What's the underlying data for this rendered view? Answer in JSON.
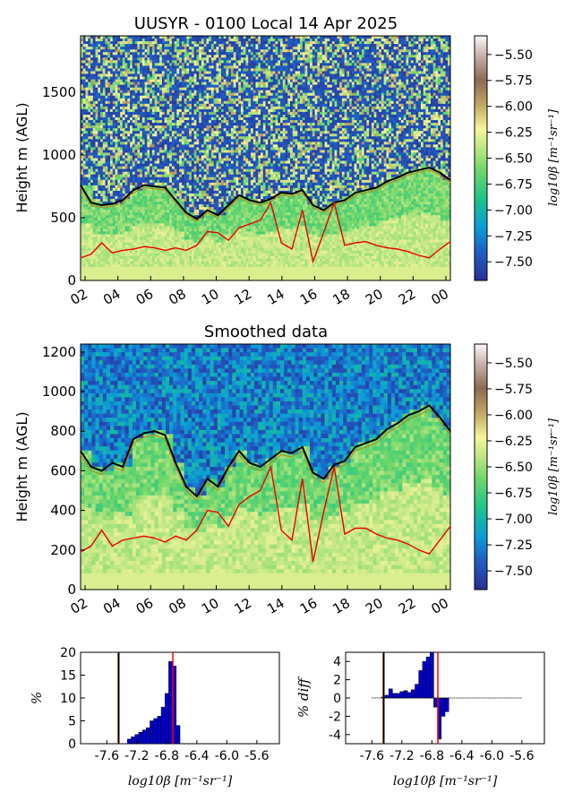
{
  "chart_data": [
    {
      "type": "heatmap",
      "title": "UUSYR - 0100 Local 14 Apr 2025",
      "ylabel": "Height m (AGL)",
      "xticks": [
        "02",
        "04",
        "06",
        "08",
        "10",
        "12",
        "14",
        "16",
        "18",
        "20",
        "22",
        "00"
      ],
      "ylim": [
        0,
        1950
      ],
      "yticks": [
        0,
        500,
        1000,
        1500
      ],
      "colorbar_label": "log10β [m⁻¹sr⁻¹]",
      "colorbar_ticks": [
        "-5.50",
        "-5.75",
        "-6.00",
        "-6.25",
        "-6.50",
        "-6.75",
        "-7.00",
        "-7.25",
        "-7.50"
      ],
      "black_line_height": [
        760,
        620,
        600,
        610,
        640,
        720,
        760,
        750,
        740,
        640,
        540,
        490,
        560,
        520,
        600,
        680,
        640,
        620,
        650,
        700,
        690,
        720,
        600,
        560,
        620,
        640,
        700,
        720,
        740,
        790,
        820,
        860,
        880,
        900,
        860,
        800
      ],
      "red_line_height": [
        180,
        210,
        300,
        220,
        240,
        250,
        270,
        260,
        240,
        260,
        240,
        280,
        390,
        380,
        320,
        420,
        450,
        480,
        620,
        300,
        250,
        560,
        150,
        380,
        620,
        280,
        300,
        310,
        280,
        260,
        250,
        230,
        200,
        180,
        250,
        310
      ]
    },
    {
      "type": "heatmap",
      "title": "Smoothed data",
      "ylabel": "Height m (AGL)",
      "xticks": [
        "02",
        "04",
        "06",
        "08",
        "10",
        "12",
        "14",
        "16",
        "18",
        "20",
        "22",
        "00"
      ],
      "ylim": [
        0,
        1240
      ],
      "yticks": [
        0,
        200,
        400,
        600,
        800,
        1000,
        1200
      ],
      "colorbar_label": "log10β [m⁻¹sr⁻¹]",
      "colorbar_ticks": [
        "-5.50",
        "-5.75",
        "-6.00",
        "-6.25",
        "-6.50",
        "-6.75",
        "-7.00",
        "-7.25",
        "-7.50"
      ],
      "black_line_height": [
        700,
        620,
        600,
        640,
        620,
        760,
        790,
        800,
        780,
        640,
        520,
        470,
        560,
        520,
        620,
        700,
        640,
        620,
        660,
        700,
        690,
        720,
        590,
        560,
        630,
        650,
        720,
        740,
        760,
        810,
        840,
        880,
        900,
        930,
        870,
        800
      ],
      "red_line_height": [
        190,
        220,
        300,
        220,
        250,
        260,
        270,
        260,
        240,
        270,
        250,
        300,
        400,
        390,
        320,
        430,
        470,
        500,
        620,
        300,
        250,
        560,
        140,
        390,
        620,
        280,
        310,
        310,
        280,
        260,
        250,
        230,
        200,
        180,
        250,
        320
      ]
    },
    {
      "type": "bar",
      "ylabel": "%",
      "xlabel": "log10β [m⁻¹sr⁻¹]",
      "xticks": [
        "-7.6",
        "-7.2",
        "-6.8",
        "-6.4",
        "-6.0",
        "-5.6"
      ],
      "ylim": [
        0,
        20
      ],
      "yticks": [
        0,
        5,
        10,
        15,
        20
      ],
      "bin_centers": [
        -7.3,
        -7.25,
        -7.2,
        -7.15,
        -7.1,
        -7.05,
        -7.0,
        -6.95,
        -6.9,
        -6.85,
        -6.8,
        -6.75,
        -6.7,
        -6.65
      ],
      "values": [
        1,
        1.5,
        2,
        2.5,
        3,
        3.5,
        5,
        5.5,
        6,
        8,
        11,
        18,
        17,
        4
      ],
      "vlines": [
        {
          "x": -7.45,
          "color": "#8B4513"
        },
        {
          "x": -7.44,
          "color": "#000000"
        },
        {
          "x": -6.72,
          "color": "#ff0000"
        }
      ]
    },
    {
      "type": "bar",
      "ylabel": "% diff",
      "xlabel": "log10β [m⁻¹sr⁻¹]",
      "xticks": [
        "-7.6",
        "-7.2",
        "-6.8",
        "-6.4",
        "-6.0",
        "-5.6"
      ],
      "ylim": [
        -5,
        5
      ],
      "yticks": [
        -4,
        -2,
        0,
        2,
        4
      ],
      "bin_centers": [
        -7.45,
        -7.4,
        -7.35,
        -7.3,
        -7.25,
        -7.2,
        -7.15,
        -7.1,
        -7.05,
        -7.0,
        -6.95,
        -6.9,
        -6.85,
        -6.8,
        -6.75,
        -6.7,
        -6.65,
        -6.6
      ],
      "values": [
        0.1,
        0.3,
        1.0,
        0.5,
        0.5,
        0.7,
        0.8,
        0.6,
        0.9,
        1.5,
        3.0,
        4.0,
        4.5,
        5.0,
        -1.0,
        -4.5,
        -2.0,
        -1.5
      ],
      "vlines": [
        {
          "x": -7.45,
          "color": "#8B4513"
        },
        {
          "x": -7.44,
          "color": "#000000"
        },
        {
          "x": -6.72,
          "color": "#ff0000"
        }
      ]
    }
  ]
}
